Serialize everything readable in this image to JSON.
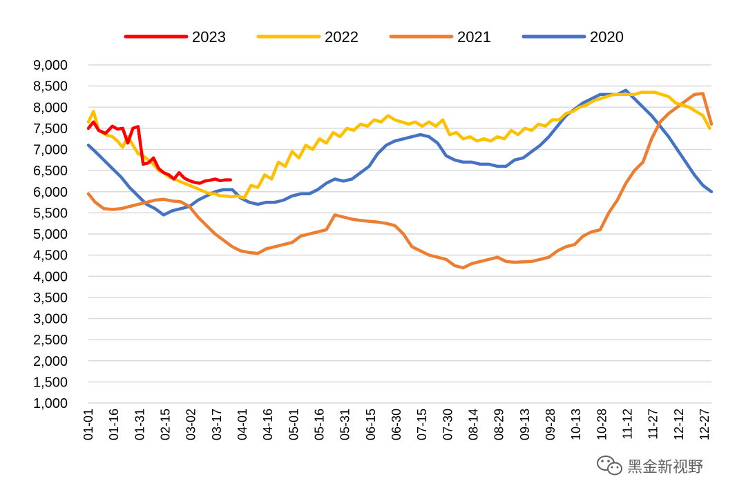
{
  "chart_data": {
    "type": "line",
    "title": "",
    "xlabel": "",
    "ylabel": "",
    "ylim": [
      1000,
      9000
    ],
    "y_ticks": [
      1000,
      1500,
      2000,
      2500,
      3000,
      3500,
      4000,
      4500,
      5000,
      5500,
      6000,
      6500,
      7000,
      7500,
      8000,
      8500,
      9000
    ],
    "y_tick_labels": [
      "1,000",
      "1,500",
      "2,000",
      "2,500",
      "3,000",
      "3,500",
      "4,000",
      "4,500",
      "5,000",
      "5,500",
      "6,000",
      "6,500",
      "7,000",
      "7,500",
      "8,000",
      "8,500",
      "9,000"
    ],
    "x_ticks": [
      "01-01",
      "01-16",
      "01-31",
      "02-15",
      "03-02",
      "03-17",
      "04-01",
      "04-16",
      "05-01",
      "05-16",
      "05-31",
      "06-15",
      "06-30",
      "07-15",
      "07-30",
      "08-14",
      "08-29",
      "09-13",
      "09-28",
      "10-13",
      "10-28",
      "11-12",
      "11-27",
      "12-12",
      "12-27"
    ],
    "grid": true,
    "legend_position": "top",
    "series": [
      {
        "name": "2023",
        "color": "#ff0000",
        "x": [
          "01-01",
          "01-04",
          "01-07",
          "01-11",
          "01-15",
          "01-18",
          "01-21",
          "01-24",
          "01-27",
          "01-30",
          "02-02",
          "02-05",
          "02-08",
          "02-11",
          "02-14",
          "02-17",
          "02-20",
          "02-23",
          "02-26",
          "03-01",
          "03-04",
          "03-07",
          "03-10",
          "03-13",
          "03-16",
          "03-19",
          "03-22",
          "03-25"
        ],
        "values": [
          7500,
          7650,
          7450,
          7380,
          7550,
          7480,
          7500,
          7150,
          7500,
          7540,
          6650,
          6680,
          6800,
          6550,
          6450,
          6400,
          6300,
          6450,
          6320,
          6260,
          6220,
          6200,
          6250,
          6270,
          6300,
          6260,
          6280,
          6280
        ]
      },
      {
        "name": "2022",
        "color": "#ffc000",
        "x": [
          "01-01",
          "01-04",
          "01-07",
          "01-11",
          "01-15",
          "01-18",
          "01-21",
          "01-24",
          "01-27",
          "01-30",
          "02-02",
          "02-05",
          "02-08",
          "02-11",
          "02-14",
          "02-17",
          "02-20",
          "02-23",
          "02-26",
          "03-01",
          "03-04",
          "03-07",
          "03-10",
          "03-13",
          "03-16",
          "03-19",
          "03-22",
          "03-25",
          "03-29",
          "04-02",
          "04-06",
          "04-10",
          "04-14",
          "04-18",
          "04-22",
          "04-26",
          "04-30",
          "05-04",
          "05-08",
          "05-12",
          "05-16",
          "05-20",
          "05-24",
          "05-28",
          "06-01",
          "06-05",
          "06-09",
          "06-13",
          "06-17",
          "06-21",
          "06-25",
          "06-29",
          "07-03",
          "07-07",
          "07-11",
          "07-15",
          "07-19",
          "07-23",
          "07-27",
          "07-31",
          "08-04",
          "08-08",
          "08-12",
          "08-16",
          "08-20",
          "08-24",
          "08-28",
          "09-01",
          "09-05",
          "09-09",
          "09-13",
          "09-17",
          "09-21",
          "09-25",
          "09-29",
          "10-03",
          "10-07",
          "10-11",
          "10-15",
          "10-19",
          "10-23",
          "10-27",
          "10-31",
          "11-04",
          "11-08",
          "11-12",
          "11-16",
          "11-20",
          "11-24",
          "11-28",
          "12-02",
          "12-06",
          "12-10",
          "12-14",
          "12-18",
          "12-22",
          "12-26",
          "12-30"
        ],
        "values": [
          7650,
          7900,
          7450,
          7350,
          7300,
          7200,
          7050,
          7300,
          7100,
          6900,
          6850,
          6750,
          6650,
          6500,
          6450,
          6350,
          6300,
          6250,
          6200,
          6150,
          6100,
          6050,
          6000,
          5950,
          5950,
          5900,
          5900,
          5880,
          5900,
          5850,
          6150,
          6100,
          6400,
          6300,
          6700,
          6600,
          6950,
          6800,
          7100,
          7000,
          7250,
          7150,
          7400,
          7300,
          7500,
          7450,
          7600,
          7550,
          7700,
          7650,
          7800,
          7700,
          7650,
          7600,
          7650,
          7550,
          7650,
          7550,
          7700,
          7350,
          7400,
          7250,
          7300,
          7200,
          7250,
          7200,
          7300,
          7250,
          7450,
          7350,
          7500,
          7450,
          7600,
          7550,
          7700,
          7700,
          7850,
          7900,
          8000,
          8050,
          8150,
          8200,
          8250,
          8300,
          8300,
          8300,
          8300,
          8350,
          8350,
          8350,
          8300,
          8250,
          8100,
          8050,
          8000,
          7900,
          7800,
          7500
        ]
      },
      {
        "name": "2021",
        "color": "#ed7d31",
        "x": [
          "01-01",
          "01-05",
          "01-10",
          "01-15",
          "01-20",
          "01-25",
          "01-30",
          "02-04",
          "02-09",
          "02-14",
          "02-19",
          "02-24",
          "03-01",
          "03-06",
          "03-11",
          "03-16",
          "03-21",
          "03-26",
          "03-31",
          "04-05",
          "04-10",
          "04-15",
          "04-20",
          "04-25",
          "04-30",
          "05-05",
          "05-10",
          "05-15",
          "05-20",
          "05-25",
          "05-30",
          "06-04",
          "06-09",
          "06-14",
          "06-19",
          "06-24",
          "06-29",
          "07-04",
          "07-09",
          "07-14",
          "07-19",
          "07-24",
          "07-29",
          "08-03",
          "08-08",
          "08-13",
          "08-18",
          "08-23",
          "08-28",
          "09-02",
          "09-07",
          "09-12",
          "09-17",
          "09-22",
          "09-27",
          "10-02",
          "10-07",
          "10-12",
          "10-17",
          "10-22",
          "10-27",
          "11-01",
          "11-06",
          "11-11",
          "11-16",
          "11-21",
          "11-26",
          "12-01",
          "12-06",
          "12-11",
          "12-16",
          "12-21",
          "12-26",
          "12-31"
        ],
        "values": [
          5950,
          5750,
          5600,
          5580,
          5600,
          5650,
          5700,
          5750,
          5800,
          5820,
          5780,
          5760,
          5650,
          5400,
          5200,
          5000,
          4850,
          4700,
          4600,
          4560,
          4540,
          4650,
          4700,
          4750,
          4800,
          4950,
          5000,
          5050,
          5100,
          5450,
          5400,
          5350,
          5320,
          5300,
          5280,
          5250,
          5200,
          5000,
          4700,
          4600,
          4500,
          4450,
          4400,
          4250,
          4200,
          4300,
          4350,
          4400,
          4450,
          4350,
          4330,
          4340,
          4350,
          4400,
          4450,
          4600,
          4700,
          4750,
          4950,
          5050,
          5100,
          5500,
          5800,
          6200,
          6500,
          6700,
          7250,
          7650,
          7850,
          8000,
          8150,
          8300,
          8320,
          7600
        ]
      },
      {
        "name": "2020",
        "color": "#4472c4",
        "x": [
          "01-01",
          "01-05",
          "01-10",
          "01-15",
          "01-20",
          "01-25",
          "01-30",
          "02-04",
          "02-09",
          "02-14",
          "02-19",
          "02-24",
          "03-01",
          "03-06",
          "03-11",
          "03-16",
          "03-21",
          "03-26",
          "03-31",
          "04-05",
          "04-10",
          "04-15",
          "04-20",
          "04-25",
          "04-30",
          "05-05",
          "05-10",
          "05-15",
          "05-20",
          "05-25",
          "05-30",
          "06-04",
          "06-09",
          "06-14",
          "06-19",
          "06-24",
          "06-29",
          "07-04",
          "07-09",
          "07-14",
          "07-19",
          "07-24",
          "07-29",
          "08-03",
          "08-08",
          "08-13",
          "08-18",
          "08-23",
          "08-28",
          "09-02",
          "09-07",
          "09-12",
          "09-17",
          "09-22",
          "09-27",
          "10-02",
          "10-07",
          "10-12",
          "10-17",
          "10-22",
          "10-27",
          "11-01",
          "11-06",
          "11-11",
          "11-16",
          "11-21",
          "11-26",
          "12-01",
          "12-06",
          "12-11",
          "12-16",
          "12-21",
          "12-26",
          "12-31"
        ],
        "values": [
          7100,
          6950,
          6750,
          6550,
          6350,
          6100,
          5900,
          5700,
          5600,
          5450,
          5550,
          5600,
          5650,
          5800,
          5900,
          6000,
          6050,
          6050,
          5850,
          5750,
          5700,
          5750,
          5750,
          5800,
          5900,
          5950,
          5950,
          6050,
          6200,
          6300,
          6250,
          6300,
          6450,
          6600,
          6900,
          7100,
          7200,
          7250,
          7300,
          7350,
          7300,
          7150,
          6850,
          6750,
          6700,
          6700,
          6650,
          6650,
          6600,
          6600,
          6750,
          6800,
          6950,
          7100,
          7300,
          7550,
          7800,
          7950,
          8100,
          8200,
          8300,
          8300,
          8300,
          8400,
          8200,
          8000,
          7800,
          7550,
          7300,
          7000,
          6700,
          6400,
          6150,
          6000
        ]
      }
    ]
  },
  "watermark": {
    "text": "黑金新视野"
  }
}
